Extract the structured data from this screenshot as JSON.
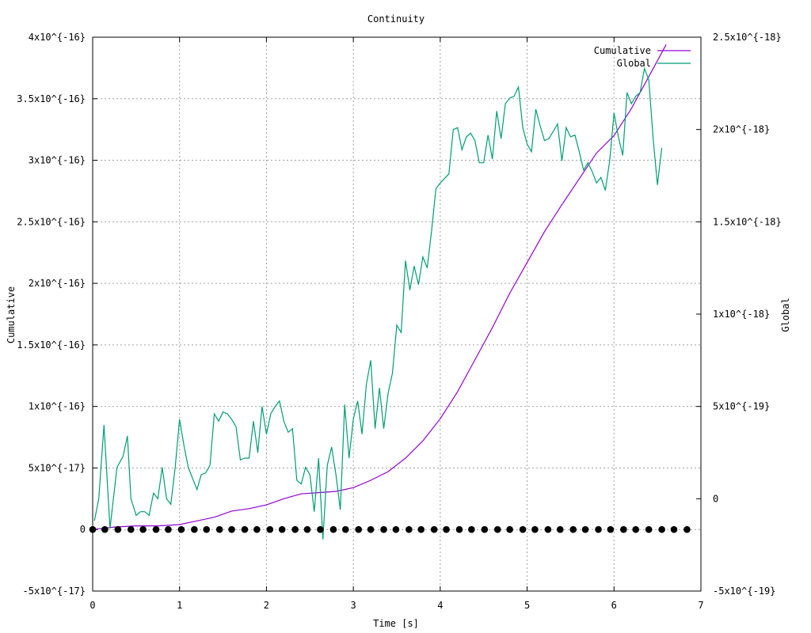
{
  "chart_data": {
    "type": "line",
    "title": "Continuity",
    "xlabel": "Time [s]",
    "ylabel_left": "Cumulative",
    "ylabel_right": "Global",
    "xlim": [
      0,
      7
    ],
    "ylim_left": [
      -5e-17,
      4e-16
    ],
    "ylim_right": [
      -5e-19,
      2.5e-18
    ],
    "x_ticks": [
      {
        "value": 0,
        "label": "0"
      },
      {
        "value": 1,
        "label": "1"
      },
      {
        "value": 2,
        "label": "2"
      },
      {
        "value": 3,
        "label": "3"
      },
      {
        "value": 4,
        "label": "4"
      },
      {
        "value": 5,
        "label": "5"
      },
      {
        "value": 6,
        "label": "6"
      },
      {
        "value": 7,
        "label": "7"
      }
    ],
    "y_ticks_left": [
      {
        "value": -5e-17,
        "label": "-5x10^{-17}"
      },
      {
        "value": 0,
        "label": "0"
      },
      {
        "value": 5e-17,
        "label": "5x10^{-17}"
      },
      {
        "value": 1e-16,
        "label": "1x10^{-16}"
      },
      {
        "value": 1.5e-16,
        "label": "1.5x10^{-16}"
      },
      {
        "value": 2e-16,
        "label": "2x10^{-16}"
      },
      {
        "value": 2.5e-16,
        "label": "2.5x10^{-16}"
      },
      {
        "value": 3e-16,
        "label": "3x10^{-16}"
      },
      {
        "value": 3.5e-16,
        "label": "3.5x10^{-16}"
      },
      {
        "value": 4e-16,
        "label": "4x10^{-16}"
      }
    ],
    "y_ticks_right": [
      {
        "value": -5e-19,
        "label": "-5x10^{-19}"
      },
      {
        "value": 0,
        "label": "0"
      },
      {
        "value": 5e-19,
        "label": "5x10^{-19}"
      },
      {
        "value": 1e-18,
        "label": "1x10^{-18}"
      },
      {
        "value": 1.5e-18,
        "label": "1.5x10^{-18}"
      },
      {
        "value": 2e-18,
        "label": "2x10^{-18}"
      },
      {
        "value": 2.5e-18,
        "label": "2.5x10^{-18}"
      }
    ],
    "grid": true,
    "legend_position": "top-right",
    "series": [
      {
        "name": "Cumulative",
        "axis": "left",
        "color": "#9400d3",
        "points": [
          [
            0,
            0
          ],
          [
            0.25,
            2e-18
          ],
          [
            0.5,
            3e-18
          ],
          [
            0.75,
            3e-18
          ],
          [
            1.0,
            4e-18
          ],
          [
            1.2,
            7e-18
          ],
          [
            1.4,
            1e-17
          ],
          [
            1.6,
            1.5e-17
          ],
          [
            1.8,
            1.7e-17
          ],
          [
            2.0,
            2e-17
          ],
          [
            2.2,
            2.5e-17
          ],
          [
            2.4,
            2.9e-17
          ],
          [
            2.6,
            3e-17
          ],
          [
            2.8,
            3.1e-17
          ],
          [
            3.0,
            3.4e-17
          ],
          [
            3.2,
            4e-17
          ],
          [
            3.4,
            4.7e-17
          ],
          [
            3.6,
            5.8e-17
          ],
          [
            3.8,
            7.2e-17
          ],
          [
            4.0,
            9e-17
          ],
          [
            4.2,
            1.12e-16
          ],
          [
            4.4,
            1.38e-16
          ],
          [
            4.6,
            1.64e-16
          ],
          [
            4.8,
            1.92e-16
          ],
          [
            5.0,
            2.17e-16
          ],
          [
            5.2,
            2.42e-16
          ],
          [
            5.4,
            2.64e-16
          ],
          [
            5.6,
            2.85e-16
          ],
          [
            5.8,
            3.06e-16
          ],
          [
            6.0,
            3.2e-16
          ],
          [
            6.2,
            3.42e-16
          ],
          [
            6.4,
            3.68e-16
          ],
          [
            6.6,
            3.94e-16
          ]
        ]
      },
      {
        "name": "Global",
        "axis": "right",
        "color": "#009e73",
        "points": [
          [
            0.02,
            -1.2e-19
          ],
          [
            0.07,
            0
          ],
          [
            0.13,
            4e-19
          ],
          [
            0.2,
            -1.6e-19
          ],
          [
            0.28,
            1.7e-19
          ],
          [
            0.35,
            2.3e-19
          ],
          [
            0.4,
            3.4e-19
          ],
          [
            0.44,
            0
          ],
          [
            0.5,
            -9e-20
          ],
          [
            0.55,
            -7e-20
          ],
          [
            0.6,
            -7e-20
          ],
          [
            0.65,
            -9e-20
          ],
          [
            0.7,
            3e-20
          ],
          [
            0.75,
            0
          ],
          [
            0.8,
            1.7e-19
          ],
          [
            0.85,
            0
          ],
          [
            0.9,
            -3e-20
          ],
          [
            0.95,
            1.7e-19
          ],
          [
            1.0,
            4.3e-19
          ],
          [
            1.05,
            2.9e-19
          ],
          [
            1.1,
            1.7e-19
          ],
          [
            1.15,
            1.1e-19
          ],
          [
            1.2,
            5e-20
          ],
          [
            1.25,
            1.3e-19
          ],
          [
            1.3,
            1.4e-19
          ],
          [
            1.35,
            1.8e-19
          ],
          [
            1.4,
            4.6e-19
          ],
          [
            1.45,
            4.2e-19
          ],
          [
            1.5,
            4.7e-19
          ],
          [
            1.55,
            4.6e-19
          ],
          [
            1.6,
            4.3e-19
          ],
          [
            1.65,
            3.9e-19
          ],
          [
            1.7,
            2.1e-19
          ],
          [
            1.75,
            2.2e-19
          ],
          [
            1.8,
            2.2e-19
          ],
          [
            1.85,
            4.2e-19
          ],
          [
            1.9,
            2.5e-19
          ],
          [
            1.95,
            5e-19
          ],
          [
            2.0,
            3.5e-19
          ],
          [
            2.05,
            4.6e-19
          ],
          [
            2.1,
            5e-19
          ],
          [
            2.15,
            5.3e-19
          ],
          [
            2.2,
            4.2e-19
          ],
          [
            2.25,
            3.6e-19
          ],
          [
            2.3,
            3.8e-19
          ],
          [
            2.35,
            1e-19
          ],
          [
            2.4,
            8e-20
          ],
          [
            2.45,
            1.7e-19
          ],
          [
            2.5,
            1.3e-19
          ],
          [
            2.55,
            -7e-20
          ],
          [
            2.6,
            2.2e-19
          ],
          [
            2.65,
            -2.2e-19
          ],
          [
            2.7,
            1.8e-19
          ],
          [
            2.75,
            2.8e-19
          ],
          [
            2.8,
            1.3e-19
          ],
          [
            2.85,
            -6e-20
          ],
          [
            2.9,
            5.1e-19
          ],
          [
            2.95,
            2.2e-19
          ],
          [
            3.0,
            4.3e-19
          ],
          [
            3.05,
            5.3e-19
          ],
          [
            3.1,
            3.5e-19
          ],
          [
            3.15,
            6.2e-19
          ],
          [
            3.2,
            7.5e-19
          ],
          [
            3.25,
            3.8e-19
          ],
          [
            3.3,
            6e-19
          ],
          [
            3.35,
            3.8e-19
          ],
          [
            3.4,
            5.7e-19
          ],
          [
            3.45,
            6.8e-19
          ],
          [
            3.5,
            9.4e-19
          ],
          [
            3.55,
            9e-19
          ],
          [
            3.6,
            1.29e-18
          ],
          [
            3.65,
            1.13e-18
          ],
          [
            3.7,
            1.26e-18
          ],
          [
            3.75,
            1.16e-18
          ],
          [
            3.8,
            1.31e-18
          ],
          [
            3.85,
            1.25e-18
          ],
          [
            3.9,
            1.45e-18
          ],
          [
            3.95,
            1.68e-18
          ],
          [
            4.0,
            1.71e-18
          ],
          [
            4.1,
            1.76e-18
          ],
          [
            4.15,
            2e-18
          ],
          [
            4.2,
            2.01e-18
          ],
          [
            4.25,
            1.89e-18
          ],
          [
            4.3,
            1.96e-18
          ],
          [
            4.35,
            1.98e-18
          ],
          [
            4.4,
            1.94e-18
          ],
          [
            4.45,
            1.82e-18
          ],
          [
            4.5,
            1.82e-18
          ],
          [
            4.55,
            1.97e-18
          ],
          [
            4.6,
            1.84e-18
          ],
          [
            4.65,
            2.1e-18
          ],
          [
            4.7,
            1.95e-18
          ],
          [
            4.75,
            2.14e-18
          ],
          [
            4.8,
            2.17e-18
          ],
          [
            4.85,
            2.18e-18
          ],
          [
            4.9,
            2.23e-18
          ],
          [
            4.95,
            2.01e-18
          ],
          [
            5.0,
            1.92e-18
          ],
          [
            5.05,
            1.88e-18
          ],
          [
            5.1,
            2.11e-18
          ],
          [
            5.15,
            2.02e-18
          ],
          [
            5.2,
            1.94e-18
          ],
          [
            5.25,
            1.95e-18
          ],
          [
            5.3,
            1.99e-18
          ],
          [
            5.35,
            2.03e-18
          ],
          [
            5.4,
            1.83e-18
          ],
          [
            5.45,
            2.01e-18
          ],
          [
            5.5,
            1.96e-18
          ],
          [
            5.55,
            1.97e-18
          ],
          [
            5.6,
            1.88e-18
          ],
          [
            5.65,
            1.78e-18
          ],
          [
            5.7,
            1.82e-18
          ],
          [
            5.75,
            1.77e-18
          ],
          [
            5.8,
            1.71e-18
          ],
          [
            5.85,
            1.74e-18
          ],
          [
            5.9,
            1.67e-18
          ],
          [
            5.95,
            1.83e-18
          ],
          [
            6.0,
            2.09e-18
          ],
          [
            6.05,
            1.96e-18
          ],
          [
            6.1,
            1.86e-18
          ],
          [
            6.15,
            2.2e-18
          ],
          [
            6.2,
            2.14e-18
          ],
          [
            6.25,
            2.18e-18
          ],
          [
            6.3,
            2.2e-18
          ],
          [
            6.35,
            2.33e-18
          ],
          [
            6.4,
            2.27e-18
          ],
          [
            6.45,
            1.95e-18
          ],
          [
            6.5,
            1.7e-18
          ],
          [
            6.55,
            1.9e-18
          ]
        ]
      },
      {
        "name": "",
        "axis": "left",
        "style": "points",
        "color": "#000000",
        "points": [
          [
            0,
            0
          ],
          [
            0.14,
            0
          ],
          [
            0.29,
            0
          ],
          [
            0.44,
            0
          ],
          [
            0.58,
            0
          ],
          [
            0.73,
            0
          ],
          [
            0.87,
            0
          ],
          [
            1.02,
            0
          ],
          [
            1.17,
            0
          ],
          [
            1.31,
            0
          ],
          [
            1.46,
            0
          ],
          [
            1.6,
            0
          ],
          [
            1.75,
            0
          ],
          [
            1.89,
            0
          ],
          [
            2.04,
            0
          ],
          [
            2.18,
            0
          ],
          [
            2.33,
            0
          ],
          [
            2.47,
            0
          ],
          [
            2.62,
            0
          ],
          [
            2.77,
            0
          ],
          [
            2.91,
            0
          ],
          [
            3.06,
            0
          ],
          [
            3.2,
            0
          ],
          [
            3.35,
            0
          ],
          [
            3.49,
            0
          ],
          [
            3.64,
            0
          ],
          [
            3.78,
            0
          ],
          [
            3.93,
            0
          ],
          [
            4.07,
            0
          ],
          [
            4.22,
            0
          ],
          [
            4.36,
            0
          ],
          [
            4.51,
            0
          ],
          [
            4.66,
            0
          ],
          [
            4.8,
            0
          ],
          [
            4.95,
            0
          ],
          [
            5.09,
            0
          ],
          [
            5.24,
            0
          ],
          [
            5.38,
            0
          ],
          [
            5.53,
            0
          ],
          [
            5.67,
            0
          ],
          [
            5.82,
            0
          ],
          [
            5.96,
            0
          ],
          [
            6.11,
            0
          ],
          [
            6.25,
            0
          ],
          [
            6.4,
            0
          ],
          [
            6.55,
            0
          ],
          [
            6.69,
            0
          ],
          [
            6.84,
            0
          ]
        ]
      }
    ]
  }
}
